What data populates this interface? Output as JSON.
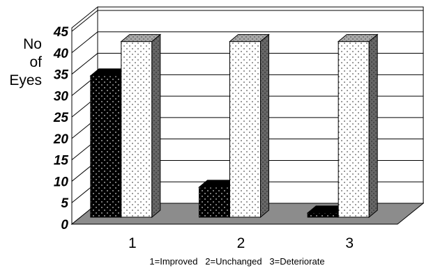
{
  "chart_data": {
    "type": "bar",
    "title": "",
    "ylabel_lines": [
      "No",
      "of",
      "Eyes"
    ],
    "xlabel": "",
    "categories": [
      "1",
      "2",
      "3"
    ],
    "category_note": "1=Improved   2=Unchanged   3=Deteriorate",
    "ylim": [
      0,
      45
    ],
    "yticks": [
      0,
      5,
      10,
      15,
      20,
      25,
      30,
      35,
      40,
      45
    ],
    "grid": true,
    "legend": "none",
    "bar_style": "3d-dotted",
    "series": [
      {
        "values": [
          33,
          7,
          1
        ],
        "color": "#000000"
      },
      {
        "values": [
          41,
          41,
          41
        ],
        "color": "#ffffff"
      }
    ]
  }
}
